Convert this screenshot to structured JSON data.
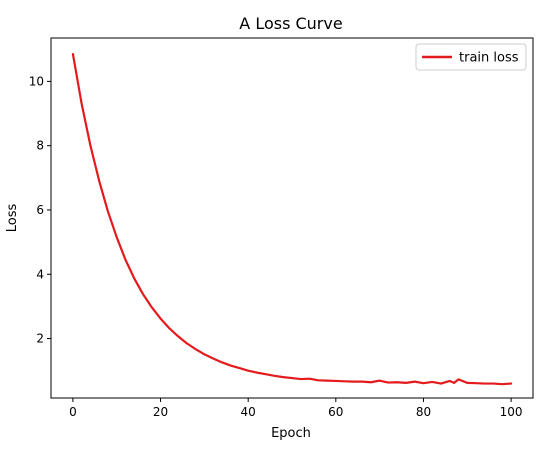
{
  "chart_data": {
    "type": "line",
    "title": "A Loss Curve",
    "xlabel": "Epoch",
    "ylabel": "Loss",
    "xlim": [
      -5,
      105
    ],
    "ylim": [
      0.15,
      11.35
    ],
    "xticks": [
      0,
      20,
      40,
      60,
      80,
      100
    ],
    "yticks": [
      2,
      4,
      6,
      8,
      10
    ],
    "grid": false,
    "legend_position": "top-right",
    "series": [
      {
        "name": "train loss",
        "color": "#e41a1c",
        "x": [
          0,
          2,
          4,
          6,
          8,
          10,
          12,
          14,
          16,
          18,
          20,
          22,
          24,
          26,
          28,
          30,
          32,
          34,
          36,
          38,
          40,
          42,
          44,
          46,
          48,
          50,
          52,
          54,
          56,
          58,
          60,
          62,
          64,
          66,
          68,
          70,
          72,
          74,
          76,
          78,
          80,
          82,
          84,
          86,
          87,
          88,
          90,
          92,
          94,
          96,
          98,
          100
        ],
        "y": [
          10.85,
          9.3,
          8.0,
          6.9,
          5.95,
          5.15,
          4.45,
          3.87,
          3.38,
          2.97,
          2.62,
          2.32,
          2.07,
          1.85,
          1.67,
          1.51,
          1.38,
          1.26,
          1.16,
          1.08,
          1.0,
          0.94,
          0.89,
          0.84,
          0.8,
          0.77,
          0.74,
          0.75,
          0.7,
          0.69,
          0.68,
          0.67,
          0.66,
          0.66,
          0.64,
          0.69,
          0.63,
          0.64,
          0.62,
          0.66,
          0.61,
          0.65,
          0.6,
          0.68,
          0.62,
          0.73,
          0.62,
          0.61,
          0.6,
          0.6,
          0.58,
          0.6
        ]
      }
    ]
  }
}
